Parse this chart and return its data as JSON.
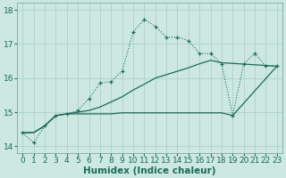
{
  "xlabel": "Humidex (Indice chaleur)",
  "ylabel": "",
  "xlim": [
    -0.5,
    23.5
  ],
  "ylim": [
    13.8,
    18.2
  ],
  "background_color": "#cce8e0",
  "grid_color": "#aaccc4",
  "line_color": "#1a6b5a",
  "line1_x": [
    0,
    1,
    2,
    3,
    4,
    5,
    6,
    7,
    8,
    9,
    10,
    11,
    12,
    13,
    14,
    15,
    16,
    17,
    18,
    19,
    20,
    21,
    22,
    23
  ],
  "line1_y": [
    14.4,
    14.1,
    14.6,
    14.9,
    14.95,
    15.05,
    15.4,
    15.85,
    15.9,
    16.2,
    17.35,
    17.72,
    17.52,
    17.2,
    17.2,
    17.1,
    16.72,
    16.72,
    16.42,
    14.9,
    16.42,
    16.72,
    16.35,
    16.35
  ],
  "line2_x": [
    0,
    1,
    2,
    3,
    4,
    5,
    6,
    7,
    8,
    9,
    10,
    11,
    12,
    13,
    14,
    15,
    16,
    17,
    18,
    23
  ],
  "line2_y": [
    14.4,
    14.4,
    14.6,
    14.9,
    14.95,
    15.0,
    15.05,
    15.15,
    15.3,
    15.45,
    15.65,
    15.82,
    16.0,
    16.1,
    16.2,
    16.3,
    16.42,
    16.52,
    16.45,
    16.35
  ],
  "line3_x": [
    0,
    1,
    2,
    3,
    4,
    5,
    6,
    7,
    8,
    9,
    10,
    11,
    12,
    13,
    14,
    15,
    16,
    17,
    18,
    19,
    23
  ],
  "line3_y": [
    14.4,
    14.4,
    14.6,
    14.9,
    14.95,
    14.95,
    14.95,
    14.95,
    14.95,
    14.98,
    14.98,
    14.98,
    14.98,
    14.98,
    14.98,
    14.98,
    14.98,
    14.98,
    14.98,
    14.9,
    16.35
  ],
  "xticks": [
    0,
    1,
    2,
    3,
    4,
    5,
    6,
    7,
    8,
    9,
    10,
    11,
    12,
    13,
    14,
    15,
    16,
    17,
    18,
    19,
    20,
    21,
    22,
    23
  ],
  "yticks": [
    14,
    15,
    16,
    17,
    18
  ],
  "tick_fontsize": 6.5,
  "label_fontsize": 7.5
}
